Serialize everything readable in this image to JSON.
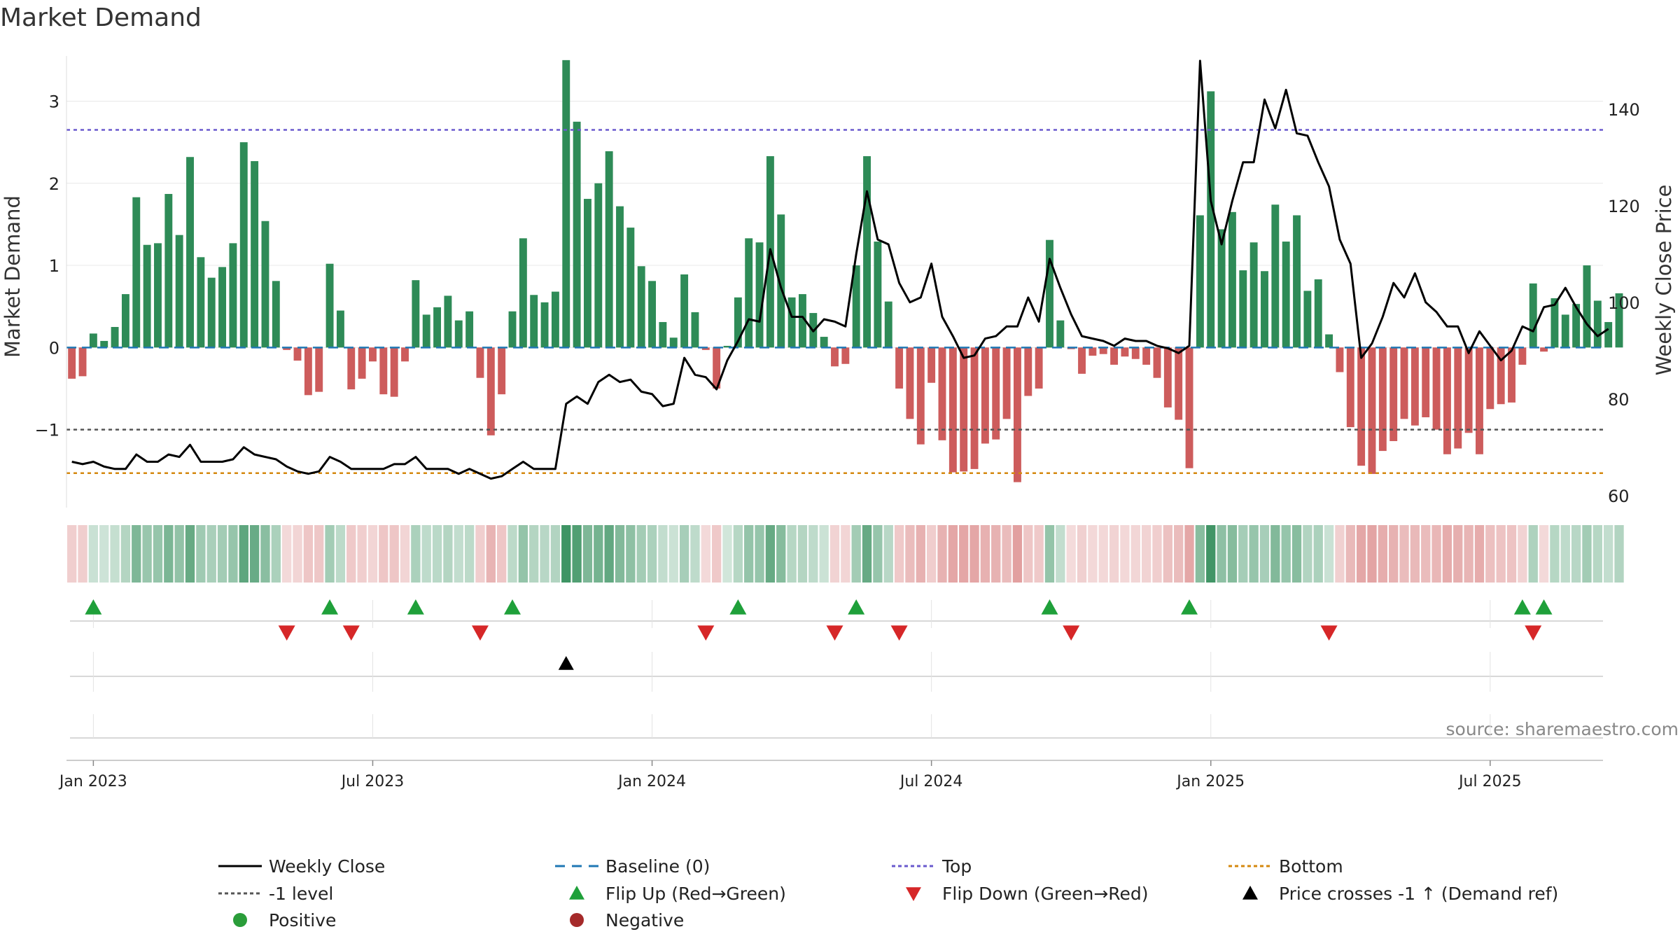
{
  "page_title": "Market Demand",
  "colors": {
    "positive_bar": "#2e8b57",
    "negative_bar": "#cd5c5c",
    "price_line": "#000000",
    "baseline": "#1f77b4",
    "top_line": "#6a5acd",
    "bottom_line": "#d4880f",
    "minus_one_line": "#555555",
    "flip_up": "#1fa03a",
    "flip_down": "#d62728",
    "cross_marker": "#000000",
    "positive_dot": "#2a9d3a",
    "negative_dot": "#a52a2a",
    "source_text": "#888888"
  },
  "chart_data": {
    "type": "bar",
    "title": "Market Demand",
    "ylabel": "Market Demand",
    "y2label": "Weekly Close Price",
    "ylim": [
      -1.95,
      3.55
    ],
    "y2lim": [
      57.5,
      151
    ],
    "yticks": [
      -1,
      0,
      1,
      2,
      3
    ],
    "y2ticks": [
      60,
      80,
      100,
      120,
      140
    ],
    "x_week_range": [
      0,
      142
    ],
    "x_ticks": [
      {
        "label": "Jan 2023",
        "week": 2
      },
      {
        "label": "Jul 2023",
        "week": 28
      },
      {
        "label": "Jan 2024",
        "week": 54
      },
      {
        "label": "Jul 2024",
        "week": 80
      },
      {
        "label": "Jan 2025",
        "week": 106
      },
      {
        "label": "Jul 2025",
        "week": 132
      }
    ],
    "reference_lines": {
      "baseline": 0,
      "top": 2.65,
      "bottom": -1.53,
      "minus_one": -1
    },
    "demand": [
      -0.38,
      -0.35,
      0.17,
      0.08,
      0.25,
      0.65,
      1.83,
      1.25,
      1.27,
      1.87,
      1.37,
      2.32,
      1.1,
      0.85,
      0.98,
      1.27,
      2.5,
      2.27,
      1.54,
      0.81,
      -0.03,
      -0.16,
      -0.58,
      -0.54,
      1.02,
      0.45,
      -0.51,
      -0.38,
      -0.17,
      -0.57,
      -0.6,
      -0.17,
      0.82,
      0.4,
      0.49,
      0.63,
      0.33,
      0.44,
      -0.37,
      -1.07,
      -0.57,
      0.44,
      1.33,
      0.64,
      0.55,
      0.68,
      3.5,
      2.75,
      1.81,
      2.0,
      2.39,
      1.72,
      1.46,
      0.99,
      0.81,
      0.31,
      0.12,
      0.89,
      0.43,
      -0.03,
      -0.5,
      0.02,
      0.61,
      1.33,
      1.28,
      2.33,
      1.62,
      0.61,
      0.65,
      0.42,
      0.13,
      -0.23,
      -0.2,
      1.0,
      2.33,
      1.29,
      0.56,
      -0.5,
      -0.87,
      -1.18,
      -0.43,
      -1.13,
      -1.52,
      -1.51,
      -1.48,
      -1.17,
      -1.12,
      -0.87,
      -1.64,
      -0.59,
      -0.5,
      1.31,
      0.33,
      -0.02,
      -0.32,
      -0.1,
      -0.08,
      -0.21,
      -0.11,
      -0.14,
      -0.21,
      -0.37,
      -0.73,
      -0.88,
      -1.47,
      1.61,
      3.12,
      1.44,
      1.65,
      0.94,
      1.28,
      0.93,
      1.74,
      1.29,
      1.61,
      0.69,
      0.83,
      0.16,
      -0.3,
      -0.97,
      -1.44,
      -1.54,
      -1.26,
      -1.14,
      -0.87,
      -0.95,
      -0.85,
      -1.0,
      -1.3,
      -1.23,
      -1.04,
      -1.3,
      -0.75,
      -0.69,
      -0.67,
      -0.21,
      0.78,
      -0.05,
      0.6,
      0.4,
      0.53,
      1.0,
      0.57,
      0.31,
      0.66
    ],
    "price": [
      67,
      66.5,
      67,
      66,
      65.5,
      65.5,
      68.5,
      67,
      67,
      68.5,
      68,
      70.5,
      67,
      67,
      67,
      67.5,
      70,
      68.5,
      68,
      67.5,
      66,
      65,
      64.5,
      65,
      68,
      67,
      65.5,
      65.5,
      65.5,
      65.5,
      66.5,
      66.5,
      68,
      65.5,
      65.5,
      65.5,
      64.5,
      65.5,
      64.5,
      63.5,
      64,
      65.5,
      67,
      65.5,
      65.5,
      65.5,
      79,
      80.5,
      79,
      83.5,
      85,
      83.5,
      84,
      81.5,
      81,
      78.5,
      79,
      88.5,
      85,
      84.5,
      82,
      88,
      92,
      96.5,
      96,
      111,
      103,
      97,
      97,
      94,
      96.5,
      96,
      95,
      110,
      123,
      113,
      112,
      104,
      100,
      101,
      108,
      97,
      93,
      88.5,
      89,
      92.5,
      93,
      95,
      95,
      101,
      96,
      109,
      103,
      97.5,
      93,
      92.5,
      92,
      91,
      92.5,
      92,
      92,
      91,
      90.5,
      89.5,
      91,
      150,
      121,
      112,
      121,
      129,
      129,
      142,
      136,
      144,
      135,
      134.5,
      129,
      124,
      113,
      108,
      88.5,
      91.5,
      97,
      104,
      101,
      106,
      100,
      98,
      95,
      95,
      89.5,
      94,
      91,
      88,
      90,
      95,
      94,
      99,
      99.5,
      103,
      99,
      95.5,
      93,
      94.5
    ],
    "flip_up_weeks": [
      2,
      24,
      32,
      41,
      62,
      73,
      91,
      104,
      135,
      137
    ],
    "flip_down_weeks": [
      20,
      26,
      38,
      59,
      71,
      77,
      93,
      117,
      136
    ],
    "price_cross_weeks": [
      46
    ],
    "legend": [
      {
        "label": "Weekly Close",
        "kind": "line-solid"
      },
      {
        "label": "Baseline (0)",
        "kind": "line-dash-baseline"
      },
      {
        "label": "Top",
        "kind": "line-dot-top"
      },
      {
        "label": "Bottom",
        "kind": "line-dot-bottom"
      },
      {
        "label": "-1 level",
        "kind": "line-dot-minus1"
      },
      {
        "label": "Flip Up (Red→Green)",
        "kind": "tri-up-green"
      },
      {
        "label": "Flip Down (Green→Red)",
        "kind": "tri-down-red"
      },
      {
        "label": "Price crosses -1 ↑ (Demand ref)",
        "kind": "tri-up-black"
      },
      {
        "label": "Positive",
        "kind": "dot-green"
      },
      {
        "label": "Negative",
        "kind": "dot-red"
      }
    ],
    "source": "source: sharemaestro.com"
  }
}
